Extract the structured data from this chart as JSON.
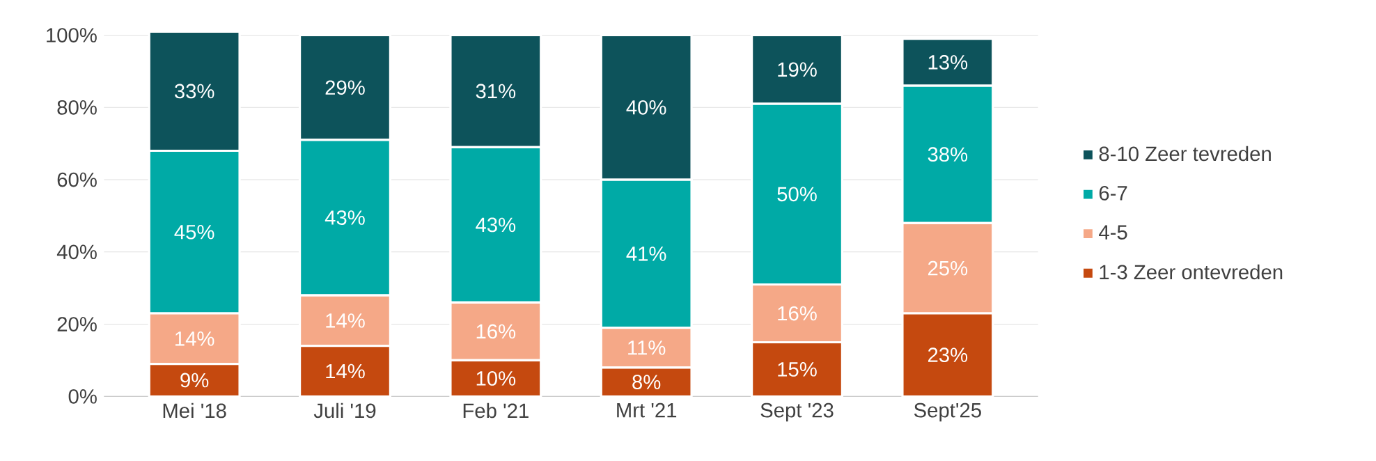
{
  "chart_data": {
    "type": "bar",
    "stacked": true,
    "categories": [
      "Mei '18",
      "Juli '19",
      "Feb '21",
      "Mrt '21",
      "Sept '23",
      "Sept'25"
    ],
    "series": [
      {
        "name": "1-3 Zeer ontevreden",
        "color": "#c5490f",
        "values": [
          9,
          14,
          10,
          8,
          15,
          23
        ],
        "value_labels": [
          "9%",
          "14%",
          "10%",
          "8%",
          "15%",
          "23%"
        ]
      },
      {
        "name": "4-5",
        "color": "#f5a887",
        "values": [
          14,
          14,
          16,
          11,
          16,
          25
        ],
        "value_labels": [
          "14%",
          "14%",
          "16%",
          "11%",
          "16%",
          "25%"
        ]
      },
      {
        "name": "6-7",
        "color": "#00aaa6",
        "values": [
          45,
          43,
          43,
          41,
          50,
          38
        ],
        "value_labels": [
          "45%",
          "43%",
          "43%",
          "41%",
          "50%",
          "38%"
        ]
      },
      {
        "name": "8-10 Zeer tevreden",
        "color": "#0d535b",
        "values": [
          33,
          29,
          31,
          40,
          19,
          13
        ],
        "value_labels": [
          "33%",
          "29%",
          "31%",
          "40%",
          "19%",
          "13%"
        ]
      }
    ],
    "ylim": [
      0,
      101
    ],
    "yticks": [
      {
        "value": 0,
        "label": "0%"
      },
      {
        "value": 20,
        "label": "20%"
      },
      {
        "value": 40,
        "label": "40%"
      },
      {
        "value": 60,
        "label": "60%"
      },
      {
        "value": 80,
        "label": "80%"
      },
      {
        "value": 100,
        "label": "100%"
      }
    ],
    "grid": "y",
    "legend": "right"
  }
}
